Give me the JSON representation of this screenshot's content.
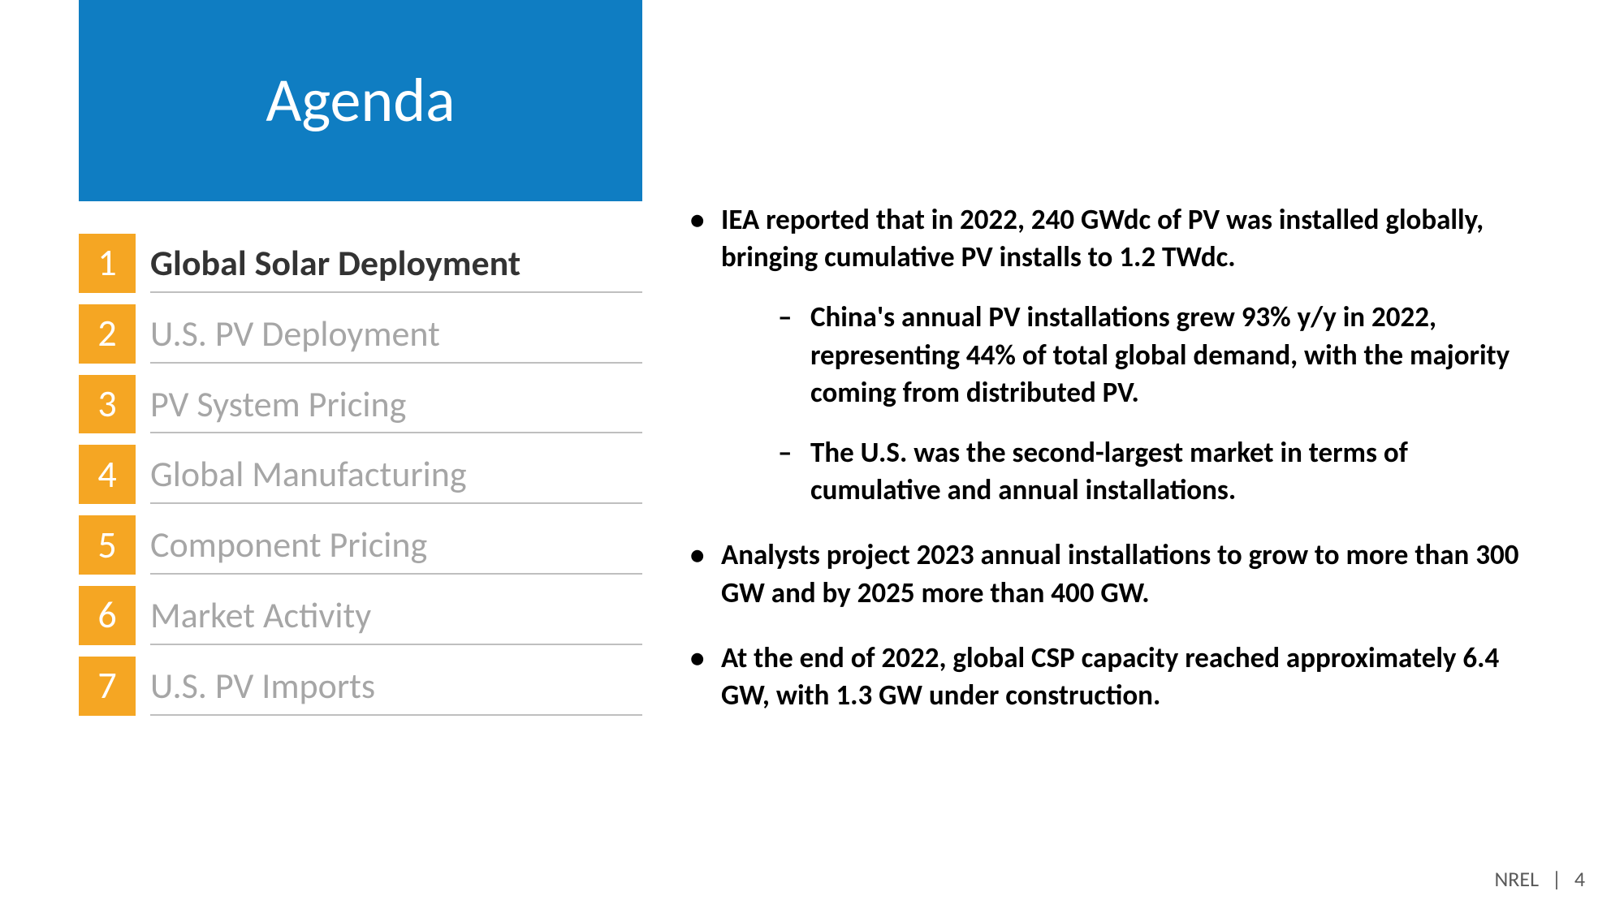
{
  "colors": {
    "title_bg": "#0f7dc2",
    "number_bg": "#f5a623",
    "active_label": "#333333",
    "inactive_label": "#a6a6a6",
    "border": "#bfbfbf",
    "body_text": "#000000"
  },
  "title": "Agenda",
  "agenda": [
    {
      "n": "1",
      "label": "Global Solar Deployment",
      "active": true
    },
    {
      "n": "2",
      "label": "U.S. PV Deployment",
      "active": false
    },
    {
      "n": "3",
      "label": "PV System Pricing",
      "active": false
    },
    {
      "n": "4",
      "label": "Global Manufacturing",
      "active": false
    },
    {
      "n": "5",
      "label": "Component Pricing",
      "active": false
    },
    {
      "n": "6",
      "label": "Market Activity",
      "active": false
    },
    {
      "n": "7",
      "label": "U.S. PV Imports",
      "active": false
    }
  ],
  "bullets": [
    {
      "text": "IEA reported that in 2022, 240 GWdc of PV was installed globally, bringing cumulative PV installs to 1.2 TWdc.",
      "sub": [
        "China's annual PV installations grew 93% y/y in 2022, representing 44% of total global demand, with the majority coming from distributed PV.",
        "The U.S. was the second-largest market in terms of cumulative and annual installations."
      ]
    },
    {
      "text": "Analysts project 2023 annual installations to grow to more than 300 GW and by 2025 more than 400 GW.",
      "sub": []
    },
    {
      "text": "At the end of 2022, global CSP capacity reached approximately 6.4 GW, with 1.3 GW under construction.",
      "sub": []
    }
  ],
  "footer": {
    "org": "NREL",
    "page": "4"
  }
}
